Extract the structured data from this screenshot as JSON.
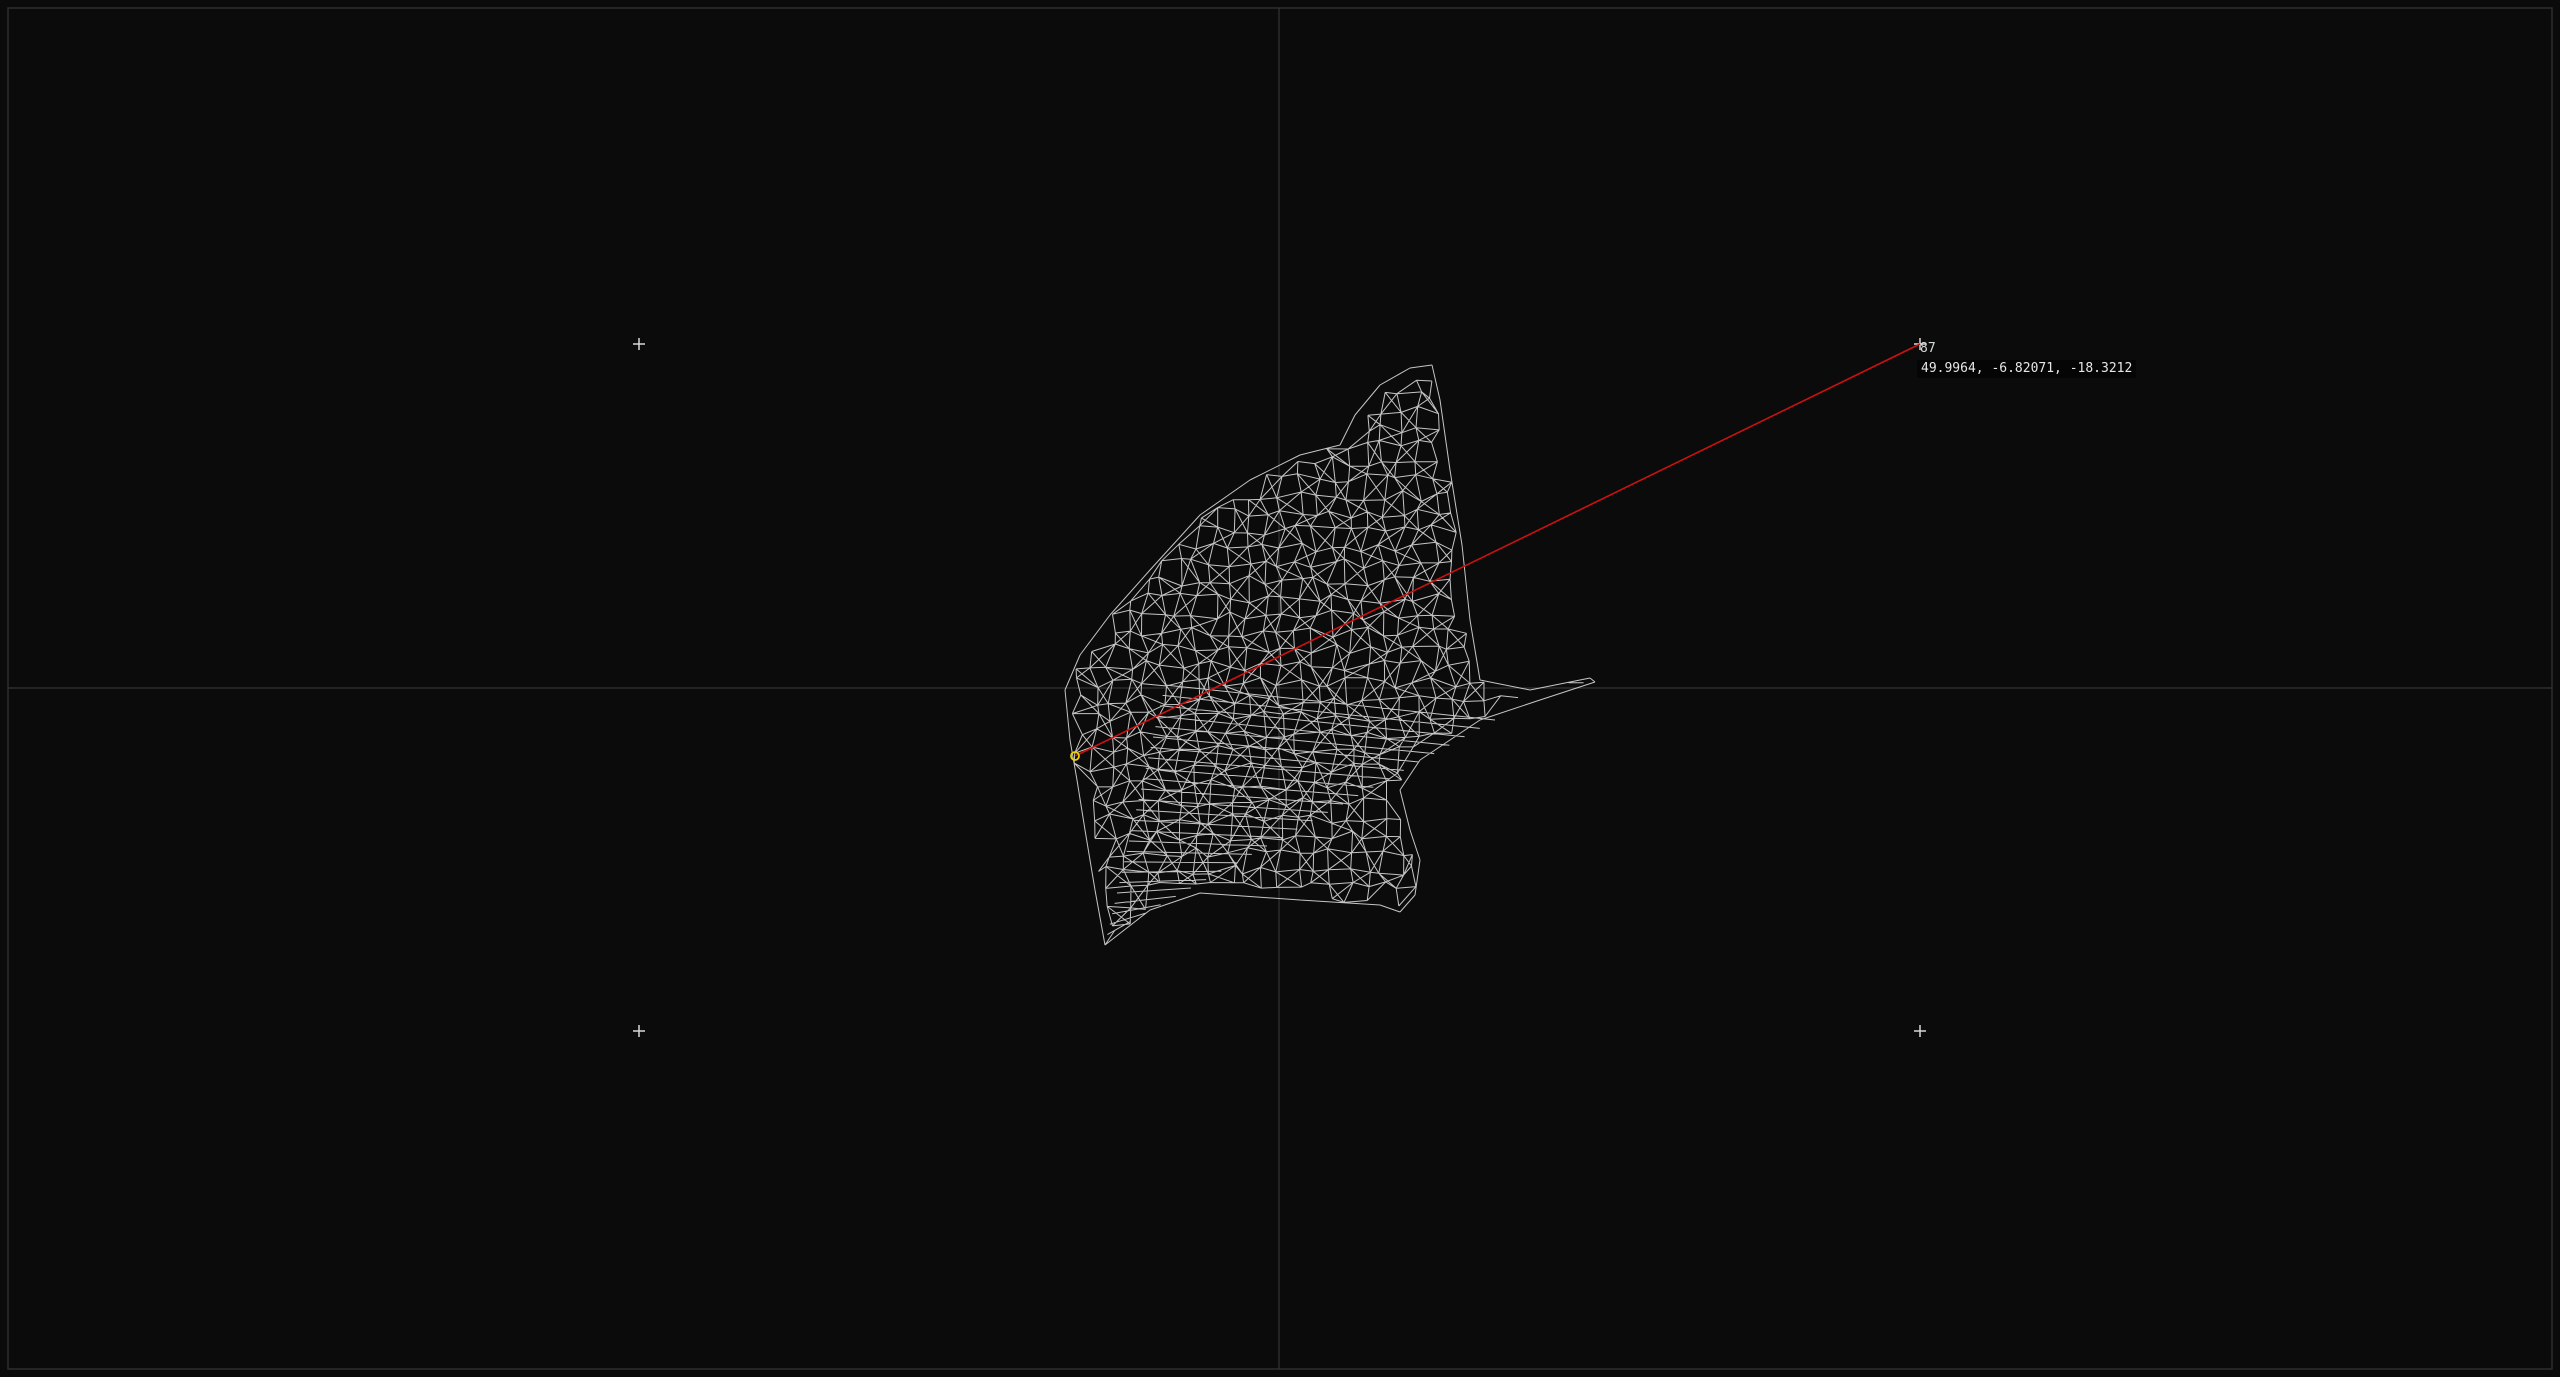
{
  "viewport": {
    "background_color": "#0b0b0b",
    "frame_color": "#2e2e2e",
    "axis_color": "#3a3a3a",
    "mesh_color": "#e8e8e8",
    "ray_color": "#cc1111",
    "selected_vertex_color": "#e8d100",
    "marker_color": "#d8d8d8"
  },
  "selection": {
    "point_index": "87",
    "coordinates": "49.9964, -6.82071, -18.3212"
  },
  "icons": {
    "marker": "crosshair-plus-icon",
    "selected_vertex": "circle-marker-icon"
  }
}
